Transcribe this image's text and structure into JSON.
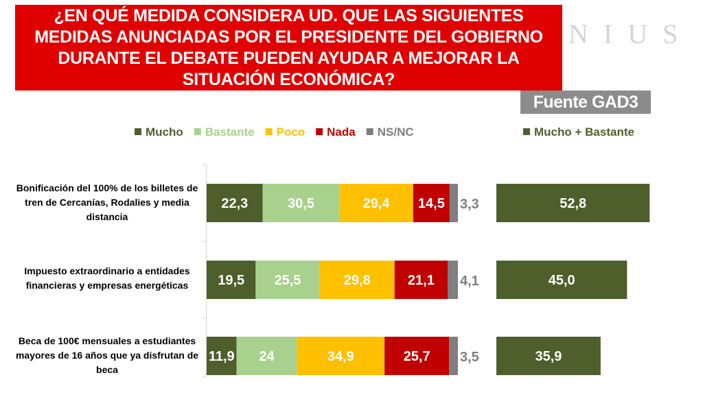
{
  "header": {
    "title": "¿EN QUÉ MEDIDA CONSIDERA UD. QUE LAS SIGUIENTES MEDIDAS ANUNCIADAS POR EL PRESIDENTE DEL GOBIERNO DURANTE EL DEBATE PUEDEN AYUDAR A MEJORAR LA SITUACIÓN ECONÓMICA?",
    "brand": "NIUS",
    "source": "Fuente GAD3"
  },
  "colors": {
    "title_bg": "#e00000",
    "mucho": "#4e5f2b",
    "bastante": "#a9d18e",
    "poco": "#ffc000",
    "nada": "#c00000",
    "nsnc": "#7f7f7f",
    "source_bg": "#8c8c8c"
  },
  "chart_data": [
    {
      "type": "bar",
      "orientation": "horizontal",
      "stacked": true,
      "title": "",
      "categories": [
        "Bonificación del 100% de los billetes de tren de Cercanías, Rodalies y media distancia",
        "Impuesto extraordinario a entidades financieras y empresas energéticas",
        "Beca de 100€ mensuales a estudiantes mayores de 16 años que ya disfrutan de beca"
      ],
      "series": [
        {
          "name": "Mucho",
          "values": [
            22.3,
            19.5,
            11.9
          ],
          "labels": [
            "22,3",
            "19,5",
            "11,9"
          ]
        },
        {
          "name": "Bastante",
          "values": [
            30.5,
            25.5,
            24
          ],
          "labels": [
            "30,5",
            "25,5",
            "24"
          ]
        },
        {
          "name": "Poco",
          "values": [
            29.4,
            29.8,
            34.9
          ],
          "labels": [
            "29,4",
            "29,8",
            "34,9"
          ]
        },
        {
          "name": "Nada",
          "values": [
            14.5,
            21.1,
            25.7
          ],
          "labels": [
            "14,5",
            "21,1",
            "25,7"
          ]
        },
        {
          "name": "NS/NC",
          "values": [
            3.3,
            4.1,
            3.5
          ],
          "labels": [
            "3,3",
            "4,1",
            "3,5"
          ]
        }
      ],
      "legend": "top",
      "xlim": [
        0,
        100
      ]
    },
    {
      "type": "bar",
      "orientation": "horizontal",
      "title": "",
      "categories": [
        "Bonificación del 100% de los billetes de tren de Cercanías, Rodalies y media distancia",
        "Impuesto extraordinario a entidades financieras y empresas energéticas",
        "Beca de 100€ mensuales a estudiantes mayores de 16 años que ya disfrutan de beca"
      ],
      "series": [
        {
          "name": "Mucho + Bastante",
          "values": [
            52.8,
            45.0,
            35.9
          ],
          "labels": [
            "52,8",
            "45,0",
            "35,9"
          ]
        }
      ],
      "legend": "top"
    }
  ]
}
